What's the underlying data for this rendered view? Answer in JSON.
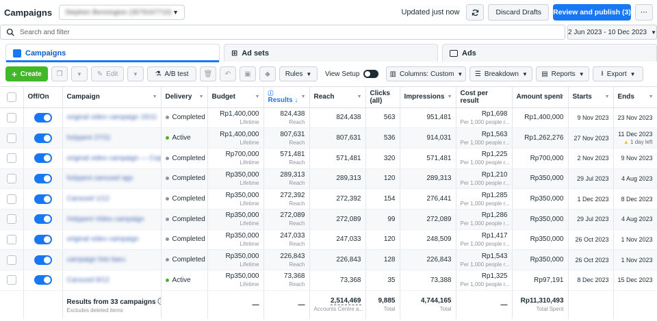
{
  "header": {
    "title": "Campaigns",
    "account": "Stephen Bennington (3579167710)",
    "updated": "Updated just now",
    "discard_label": "Discard Drafts",
    "publish_label": "Review and publish (3)"
  },
  "search": {
    "placeholder": "Search and filter"
  },
  "date_range": "2 Jun 2023 - 10 Dec 2023",
  "tabs": [
    {
      "label": "Campaigns"
    },
    {
      "label": "Ad sets"
    },
    {
      "label": "Ads"
    }
  ],
  "toolbar": {
    "create": "Create",
    "edit": "Edit",
    "ab_test": "A/B test",
    "rules": "Rules",
    "view_setup": "View Setup",
    "columns": "Columns: Custom",
    "breakdown": "Breakdown",
    "reports": "Reports",
    "export": "Export"
  },
  "columns": {
    "onoff": "Off/On",
    "campaign": "Campaign",
    "delivery": "Delivery",
    "budget": "Budget",
    "results": "Results",
    "reach": "Reach",
    "clicks": "Clicks (all)",
    "impressions": "Impressions",
    "cpr": "Cost per result",
    "spent": "Amount spent",
    "starts": "Starts",
    "ends": "Ends"
  },
  "rows": [
    {
      "campaign": "original video campaign 15/11",
      "delivery": "Completed",
      "budget": "Rp1,400,000",
      "budget_sub": "Lifetime",
      "results": "824,438",
      "results_sub": "Reach",
      "reach": "824,438",
      "clicks": "563",
      "impressions": "951,481",
      "cpr": "Rp1,698",
      "cpr_sub": "Per 1,000 people r...",
      "spent": "Rp1,400,000",
      "starts": "9 Nov 2023",
      "ends": "23 Nov 2023",
      "ends_sub": ""
    },
    {
      "campaign": "holypeni 27/11",
      "delivery": "Active",
      "budget": "Rp1,400,000",
      "budget_sub": "Lifetime",
      "results": "807,631",
      "results_sub": "Reach",
      "reach": "807,631",
      "clicks": "536",
      "impressions": "914,031",
      "cpr": "Rp1,563",
      "cpr_sub": "Per 1,000 people r...",
      "spent": "Rp1,262,276",
      "starts": "27 Nov 2023",
      "ends": "11 Dec 2023",
      "ends_sub": "1 day left"
    },
    {
      "campaign": "original video campaign — Copy",
      "delivery": "Completed",
      "budget": "Rp700,000",
      "budget_sub": "Lifetime",
      "results": "571,481",
      "results_sub": "Reach",
      "reach": "571,481",
      "clicks": "320",
      "impressions": "571,481",
      "cpr": "Rp1,225",
      "cpr_sub": "Per 1,000 people r...",
      "spent": "Rp700,000",
      "starts": "2 Nov 2023",
      "ends": "9 Nov 2023",
      "ends_sub": ""
    },
    {
      "campaign": "holypeni carousel ags",
      "delivery": "Completed",
      "budget": "Rp350,000",
      "budget_sub": "Lifetime",
      "results": "289,313",
      "results_sub": "Reach",
      "reach": "289,313",
      "clicks": "120",
      "impressions": "289,313",
      "cpr": "Rp1,210",
      "cpr_sub": "Per 1,000 people r...",
      "spent": "Rp350,000",
      "starts": "29 Jul 2023",
      "ends": "4 Aug 2023",
      "ends_sub": ""
    },
    {
      "campaign": "Carousel 1/12",
      "delivery": "Completed",
      "budget": "Rp350,000",
      "budget_sub": "Lifetime",
      "results": "272,392",
      "results_sub": "Reach",
      "reach": "272,392",
      "clicks": "154",
      "impressions": "276,441",
      "cpr": "Rp1,285",
      "cpr_sub": "Per 1,000 people r...",
      "spent": "Rp350,000",
      "starts": "1 Dec 2023",
      "ends": "8 Dec 2023",
      "ends_sub": ""
    },
    {
      "campaign": "Holypeni Video campaign",
      "delivery": "Completed",
      "budget": "Rp350,000",
      "budget_sub": "Lifetime",
      "results": "272,089",
      "results_sub": "Reach",
      "reach": "272,089",
      "clicks": "99",
      "impressions": "272,089",
      "cpr": "Rp1,286",
      "cpr_sub": "Per 1,000 people r...",
      "spent": "Rp350,000",
      "starts": "29 Jul 2023",
      "ends": "4 Aug 2023",
      "ends_sub": ""
    },
    {
      "campaign": "original video campaign",
      "delivery": "Completed",
      "budget": "Rp350,000",
      "budget_sub": "Lifetime",
      "results": "247,033",
      "results_sub": "Reach",
      "reach": "247,033",
      "clicks": "120",
      "impressions": "248,509",
      "cpr": "Rp1,417",
      "cpr_sub": "Per 1,000 people r...",
      "spent": "Rp350,000",
      "starts": "26 Oct 2023",
      "ends": "1 Nov 2023",
      "ends_sub": ""
    },
    {
      "campaign": "campaign foto baru",
      "delivery": "Completed",
      "budget": "Rp350,000",
      "budget_sub": "Lifetime",
      "results": "226,843",
      "results_sub": "Reach",
      "reach": "226,843",
      "clicks": "128",
      "impressions": "226,843",
      "cpr": "Rp1,543",
      "cpr_sub": "Per 1,000 people r...",
      "spent": "Rp350,000",
      "starts": "26 Oct 2023",
      "ends": "1 Nov 2023",
      "ends_sub": ""
    },
    {
      "campaign": "Carousel 8/12",
      "delivery": "Active",
      "budget": "Rp350,000",
      "budget_sub": "Lifetime",
      "results": "73,368",
      "results_sub": "Reach",
      "reach": "73,368",
      "clicks": "35",
      "impressions": "73,388",
      "cpr": "Rp1,325",
      "cpr_sub": "Per 1,000 people r...",
      "spent": "Rp97,191",
      "starts": "8 Dec 2023",
      "ends": "15 Dec 2023",
      "ends_sub": ""
    }
  ],
  "footer": {
    "label": "Results from 33 campaigns",
    "sub": "Excludes deleted items",
    "budget": "—",
    "results": "—",
    "reach": "2,514,469",
    "reach_sub": "Accounts Centre a...",
    "clicks": "9,885",
    "clicks_sub": "Total",
    "impressions": "4,744,165",
    "impressions_sub": "Total",
    "cpr": "—",
    "spent": "Rp11,310,493",
    "spent_sub": "Total Spent"
  }
}
